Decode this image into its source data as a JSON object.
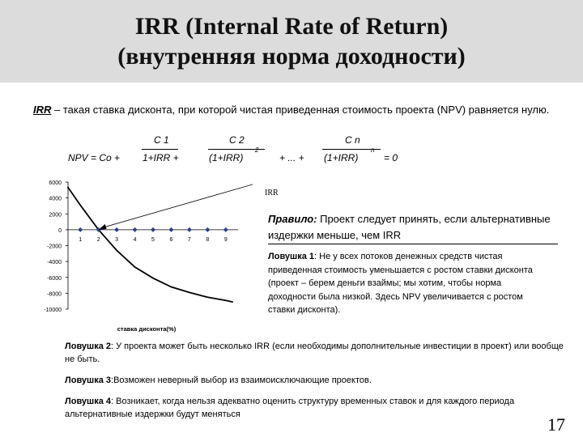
{
  "slide": {
    "title_line1": "IRR (Internal Rate of Return)",
    "title_line2": "(внутренняя норма доходности)",
    "intro_term": "IRR",
    "intro_text": " – такая ставка дисконта, при которой чистая приведенная стоимость проекта (NPV) равняется нулю.",
    "formula": {
      "lhs": "NPV = Co +",
      "num1": "C 1",
      "den1": "1+IRR  +",
      "num2": "C 2",
      "den2": "(1+IRR)",
      "exp2": "2",
      "mid": "+   ... +",
      "numn": "C n",
      "denn": "(1+IRR)",
      "expn": "n",
      "rhs": "= 0"
    },
    "irr_label": "IRR",
    "rule_label": "Правило:",
    "rule_text": " Проект следует принять, если альтернативные издержки меньше, чем IRR",
    "trap1_label": "Ловушка 1",
    "trap1_text": ": Не у всех потоков денежных средств чистая приведенная стоимость уменьшается с ростом ставки дисконта (проект – берем деньги взаймы; мы хотим, чтобы норма доходности была низкой. Здесь NPV увеличивается с ростом ставки дисконта).",
    "trap2_label": "Ловушка 2",
    "trap2_text": ": У проекта может быть несколько IRR (если необходимы дополнительные инвестиции в проект) или вообще не быть.",
    "trap3_label": "Ловушка 3",
    "trap3_text": ":Возможен неверный выбор из взаимоисключающие проектов.",
    "trap4_label": "Ловушка 4",
    "trap4_text": ": Возникает, когда нельзя адекватно оценить структуру временных ставок и для каждого периода альтернативные издержки будут меняться",
    "page_number": "17"
  },
  "chart_data": {
    "type": "line",
    "title": "",
    "xlabel": "ставка дисконта(%)",
    "ylabel": "",
    "x_ticks": [
      "1",
      "2",
      "3",
      "4",
      "5",
      "6",
      "7",
      "8",
      "9"
    ],
    "y_ticks": [
      "6000",
      "4000",
      "2000",
      "0",
      "-2000",
      "-4000",
      "-6000",
      "-8000",
      "-10000"
    ],
    "ylim": [
      -10000,
      6000
    ],
    "series": [
      {
        "x": [
          0.3,
          1,
          2,
          3,
          4,
          5,
          6,
          7,
          8,
          9,
          9.4
        ],
        "values": [
          5400,
          3100,
          0,
          -2600,
          -4700,
          -6100,
          -7200,
          -7900,
          -8500,
          -8900,
          -9100
        ]
      }
    ],
    "markers": {
      "x": [
        1,
        2,
        3,
        4,
        5,
        6,
        7,
        8,
        9
      ],
      "values": [
        0,
        0,
        0,
        0,
        0,
        0,
        0,
        0,
        0
      ]
    },
    "color": "#000000",
    "marker_color": "#2e3e8f",
    "annotation": {
      "label": "IRR",
      "points_to_x": 2
    }
  }
}
